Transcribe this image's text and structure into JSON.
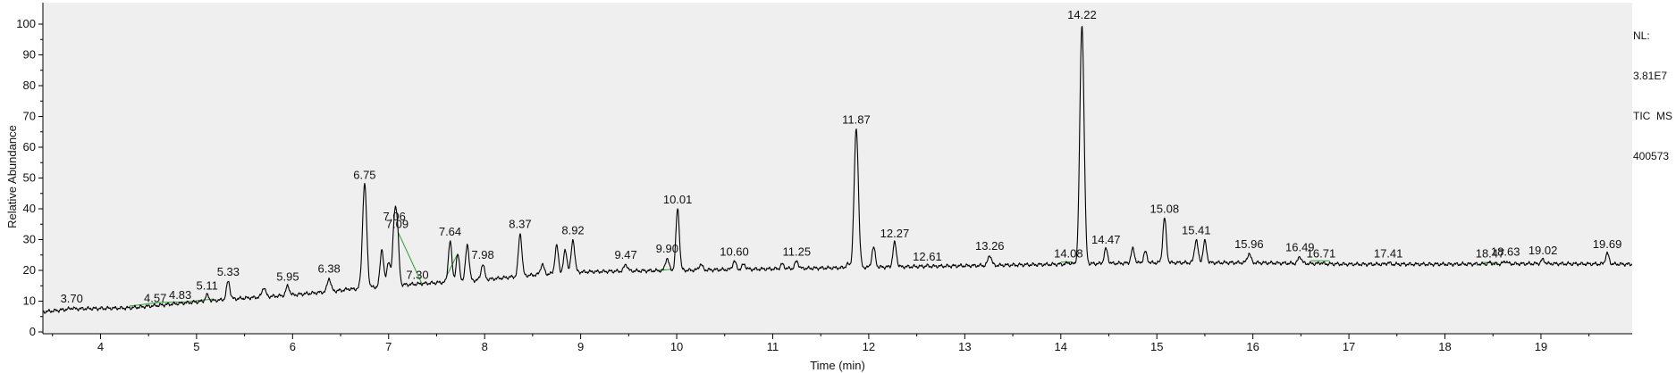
{
  "side_info": {
    "nl_label": "NL:",
    "nl_value": "3.81E7",
    "trace_label": "TIC  MS",
    "file_id": "400573"
  },
  "colors": {
    "plot_background": "#efefef",
    "trace": "#000000",
    "baseline_marks": "#2ca02c",
    "axis": "#000000"
  },
  "chart_data": {
    "type": "line",
    "title": "",
    "xlabel": "Time (min)",
    "ylabel": "Relative Abundance",
    "xlim": [
      3.4,
      19.95
    ],
    "ylim": [
      0,
      105
    ],
    "x_ticks": [
      4,
      5,
      6,
      7,
      8,
      9,
      10,
      11,
      12,
      13,
      14,
      15,
      16,
      17,
      18,
      19
    ],
    "y_ticks": [
      0,
      10,
      20,
      30,
      40,
      50,
      60,
      70,
      80,
      90,
      100
    ],
    "grid": false,
    "baseline": [
      [
        3.4,
        6.5
      ],
      [
        3.7,
        7.5
      ],
      [
        4.3,
        7.8
      ],
      [
        4.9,
        9.5
      ],
      [
        5.5,
        11.0
      ],
      [
        6.0,
        12.0
      ],
      [
        6.5,
        13.5
      ],
      [
        7.0,
        15.0
      ],
      [
        7.5,
        16.0
      ],
      [
        8.0,
        17.0
      ],
      [
        8.5,
        18.5
      ],
      [
        9.0,
        19.5
      ],
      [
        9.5,
        19.8
      ],
      [
        10.0,
        20.0
      ],
      [
        11.0,
        20.5
      ],
      [
        12.0,
        21.0
      ],
      [
        13.0,
        21.5
      ],
      [
        14.0,
        22.0
      ],
      [
        15.0,
        22.5
      ],
      [
        16.0,
        22.5
      ],
      [
        17.0,
        22.0
      ],
      [
        18.0,
        22.0
      ],
      [
        19.0,
        22.2
      ],
      [
        19.95,
        22.0
      ]
    ],
    "peaks": [
      {
        "rt": 3.7,
        "label": "3.70",
        "height": 7.8
      },
      {
        "rt": 4.57,
        "label": "4.57",
        "height": 7.9
      },
      {
        "rt": 4.83,
        "label": "4.83",
        "height": 9.0
      },
      {
        "rt": 5.11,
        "label": "5.11",
        "height": 12.0
      },
      {
        "rt": 5.33,
        "label": "5.33",
        "height": 16.5
      },
      {
        "rt": 5.95,
        "label": "5.95",
        "height": 15.0
      },
      {
        "rt": 6.38,
        "label": "6.38",
        "height": 17.5
      },
      {
        "rt": 6.75,
        "label": "6.75",
        "height": 48.0
      },
      {
        "rt": 7.06,
        "label": "7.06",
        "height": 34.5
      },
      {
        "rt": 7.09,
        "label": "7.09",
        "height": 32.0
      },
      {
        "rt": 7.3,
        "label": "7.30",
        "height": 15.5
      },
      {
        "rt": 7.64,
        "label": "7.64",
        "height": 29.5
      },
      {
        "rt": 7.98,
        "label": "7.98",
        "height": 22.0
      },
      {
        "rt": 8.37,
        "label": "8.37",
        "height": 32.0
      },
      {
        "rt": 8.92,
        "label": "8.92",
        "height": 30.0
      },
      {
        "rt": 9.47,
        "label": "9.47",
        "height": 22.0
      },
      {
        "rt": 9.9,
        "label": "9.90",
        "height": 24.0
      },
      {
        "rt": 10.01,
        "label": "10.01",
        "height": 40.0
      },
      {
        "rt": 10.6,
        "label": "10.60",
        "height": 23.0
      },
      {
        "rt": 11.25,
        "label": "11.25",
        "height": 23.0
      },
      {
        "rt": 11.87,
        "label": "11.87",
        "height": 66.0
      },
      {
        "rt": 12.27,
        "label": "12.27",
        "height": 29.0
      },
      {
        "rt": 12.61,
        "label": "12.61",
        "height": 21.5
      },
      {
        "rt": 13.26,
        "label": "13.26",
        "height": 25.0
      },
      {
        "rt": 14.08,
        "label": "14.08",
        "height": 22.5
      },
      {
        "rt": 14.22,
        "label": "14.22",
        "height": 100.0
      },
      {
        "rt": 14.47,
        "label": "14.47",
        "height": 27.0
      },
      {
        "rt": 15.08,
        "label": "15.08",
        "height": 37.0
      },
      {
        "rt": 15.41,
        "label": "15.41",
        "height": 30.0
      },
      {
        "rt": 15.96,
        "label": "15.96",
        "height": 25.5
      },
      {
        "rt": 16.49,
        "label": "16.49",
        "height": 24.5
      },
      {
        "rt": 16.71,
        "label": "16.71",
        "height": 22.5
      },
      {
        "rt": 17.41,
        "label": "17.41",
        "height": 22.5
      },
      {
        "rt": 18.47,
        "label": "18.47",
        "height": 22.5
      },
      {
        "rt": 18.63,
        "label": "18.63",
        "height": 23.0
      },
      {
        "rt": 19.02,
        "label": "19.02",
        "height": 23.5
      },
      {
        "rt": 19.69,
        "label": "19.69",
        "height": 25.5
      }
    ],
    "unlabeled_peaks": [
      {
        "rt": 5.7,
        "height": 14.5
      },
      {
        "rt": 5.8,
        "height": 11.5
      },
      {
        "rt": 6.58,
        "height": 14.0
      },
      {
        "rt": 6.68,
        "height": 13.0
      },
      {
        "rt": 6.93,
        "height": 27.0
      },
      {
        "rt": 7.0,
        "height": 23.0
      },
      {
        "rt": 7.72,
        "height": 25.0
      },
      {
        "rt": 7.82,
        "height": 28.5
      },
      {
        "rt": 8.6,
        "height": 22.0
      },
      {
        "rt": 8.75,
        "height": 28.0
      },
      {
        "rt": 8.84,
        "height": 26.5
      },
      {
        "rt": 10.25,
        "height": 22.0
      },
      {
        "rt": 10.7,
        "height": 22.0
      },
      {
        "rt": 11.1,
        "height": 22.0
      },
      {
        "rt": 11.78,
        "height": 22.0
      },
      {
        "rt": 12.05,
        "height": 27.5
      },
      {
        "rt": 14.75,
        "height": 27.0
      },
      {
        "rt": 14.88,
        "height": 26.0
      },
      {
        "rt": 15.5,
        "height": 29.5
      }
    ],
    "green_segments": [
      [
        4.3,
        4.62
      ],
      [
        4.62,
        4.88
      ],
      [
        4.88,
        5.16
      ],
      [
        7.1,
        7.35
      ],
      [
        7.6,
        7.72
      ],
      [
        9.82,
        9.95
      ],
      [
        14.0,
        14.12
      ],
      [
        16.6,
        16.8
      ],
      [
        18.4,
        18.55
      ]
    ]
  }
}
